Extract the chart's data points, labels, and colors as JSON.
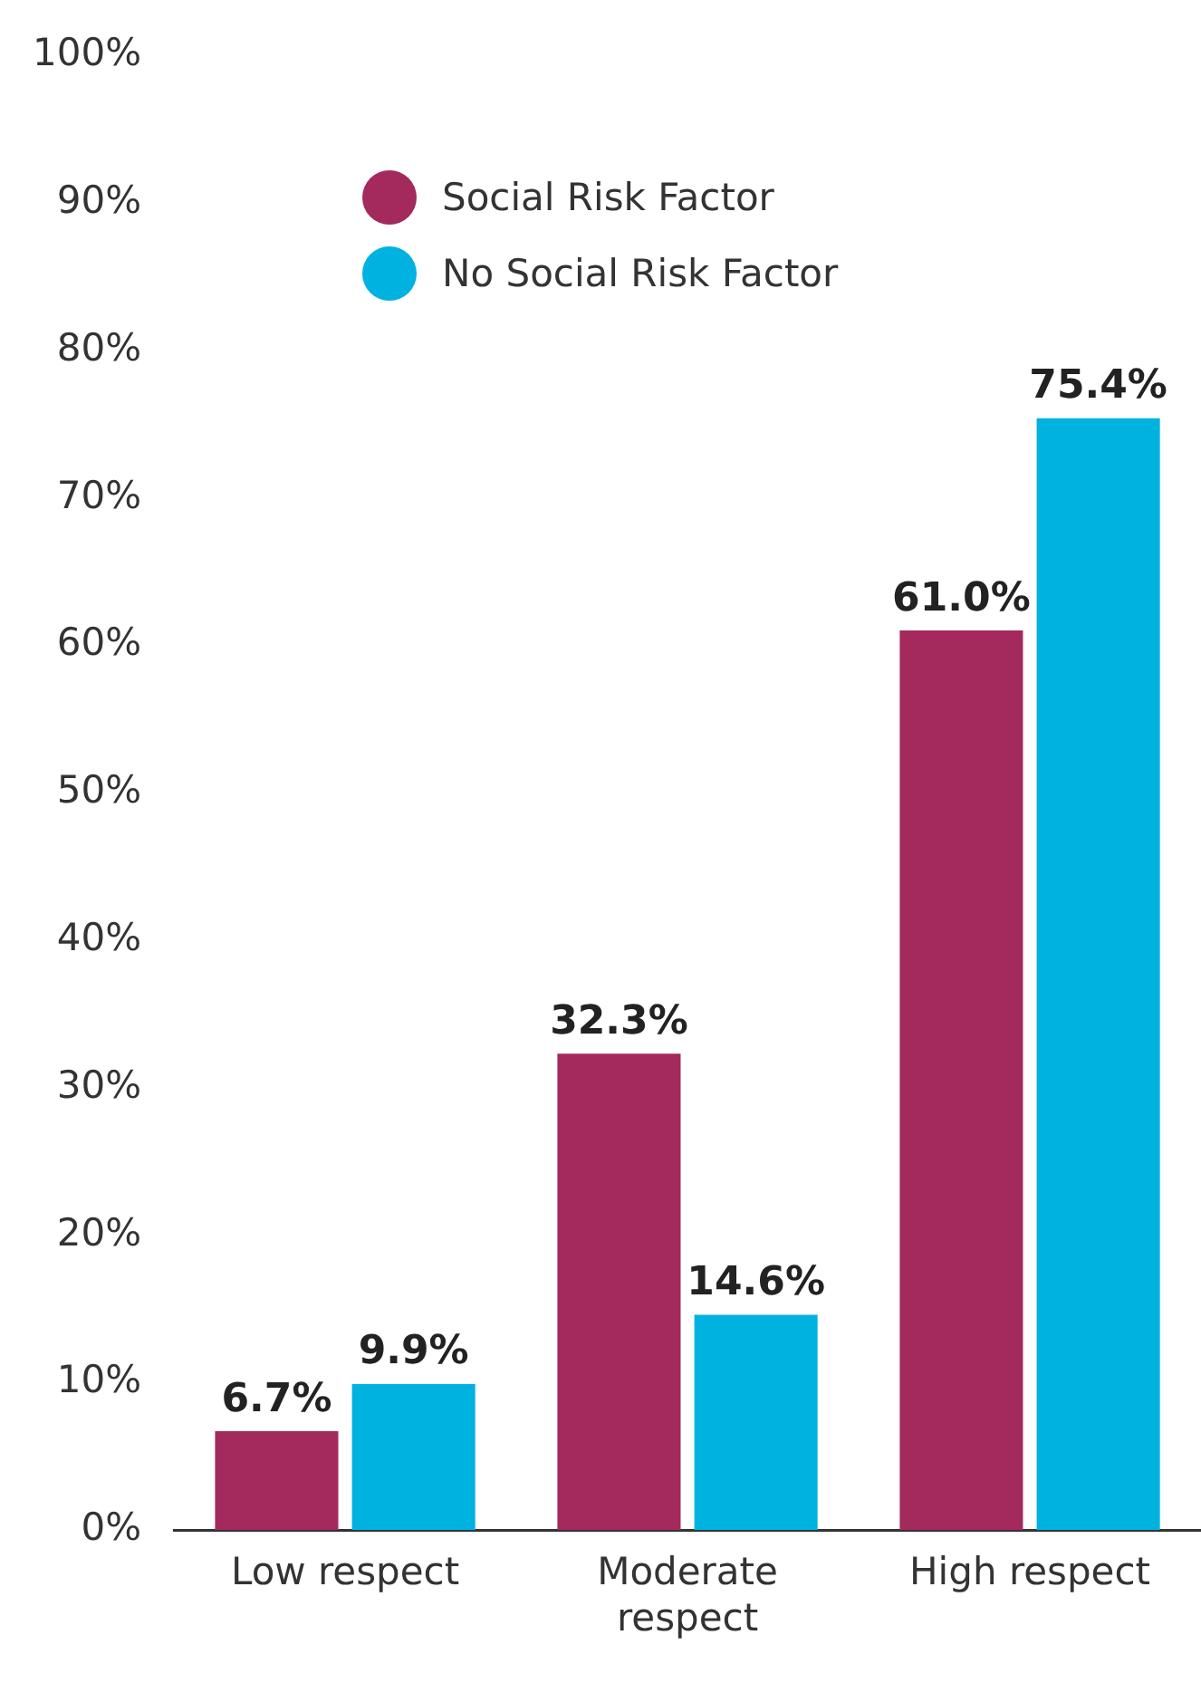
{
  "chart_data": {
    "type": "bar",
    "categories": [
      "Low respect",
      "Moderate respect",
      "High respect"
    ],
    "series": [
      {
        "name": "Social Risk Factor",
        "color": "#a4295c",
        "values": [
          6.7,
          32.3,
          61.0
        ],
        "value_labels": [
          "6.7%",
          "32.3%",
          "61.0%"
        ]
      },
      {
        "name": "No Social Risk Factor",
        "color": "#00b2e0",
        "values": [
          9.9,
          14.6,
          75.4
        ],
        "value_labels": [
          "9.9%",
          "14.6%",
          "75.4%"
        ]
      }
    ],
    "ylim": [
      0,
      100
    ],
    "yticks": [
      {
        "value": 0,
        "label": "0%"
      },
      {
        "value": 10,
        "label": "10%"
      },
      {
        "value": 20,
        "label": "20%"
      },
      {
        "value": 30,
        "label": "30%"
      },
      {
        "value": 40,
        "label": "40%"
      },
      {
        "value": 50,
        "label": "50%"
      },
      {
        "value": 60,
        "label": "60%"
      },
      {
        "value": 70,
        "label": "70%"
      },
      {
        "value": 80,
        "label": "80%"
      },
      {
        "value": 90,
        "label": "90%"
      },
      {
        "value": 100,
        "label": "100%"
      }
    ],
    "grid": false,
    "legend": "top left"
  }
}
